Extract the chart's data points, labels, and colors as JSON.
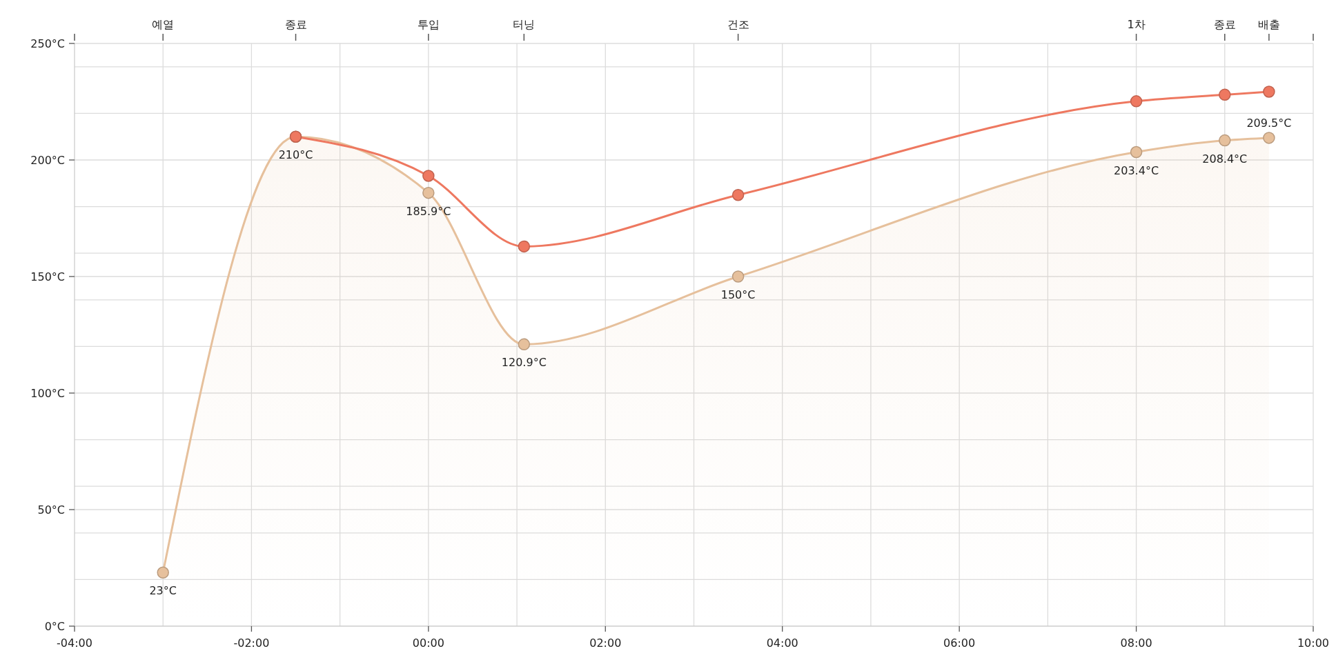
{
  "chart_data": {
    "type": "area",
    "xlim": [
      -4,
      10
    ],
    "xticks": [
      {
        "value": -4,
        "label": "-04:00"
      },
      {
        "value": -3,
        "label": null
      },
      {
        "value": -2,
        "label": "-02:00"
      },
      {
        "value": -1,
        "label": null
      },
      {
        "value": 0,
        "label": "00:00"
      },
      {
        "value": 1,
        "label": null
      },
      {
        "value": 2,
        "label": "02:00"
      },
      {
        "value": 3,
        "label": null
      },
      {
        "value": 4,
        "label": "04:00"
      },
      {
        "value": 5,
        "label": null
      },
      {
        "value": 6,
        "label": "06:00"
      },
      {
        "value": 7,
        "label": null
      },
      {
        "value": 8,
        "label": "08:00"
      },
      {
        "value": 9,
        "label": null
      },
      {
        "value": 10,
        "label": "10:00"
      }
    ],
    "ref_lines": [
      {
        "axis": "x",
        "value": -3,
        "label": "예열"
      },
      {
        "axis": "x",
        "value": -1.5,
        "label": "종료"
      },
      {
        "axis": "x",
        "value": 0,
        "label": "투입"
      },
      {
        "axis": "x",
        "value": 1.08,
        "label": "터닝"
      },
      {
        "axis": "x",
        "value": 3.5,
        "label": "건조"
      },
      {
        "axis": "x",
        "value": 8,
        "label": "1차"
      },
      {
        "axis": "x",
        "value": 9,
        "label": "종료"
      },
      {
        "axis": "x",
        "value": 9.5,
        "label": "배출"
      }
    ],
    "ylim": [
      0,
      250
    ],
    "yticks": [
      {
        "value": 0,
        "label": "0°C"
      },
      {
        "value": 20,
        "label": null
      },
      {
        "value": 40,
        "label": null
      },
      {
        "value": 50,
        "label": "50°C"
      },
      {
        "value": 60,
        "label": null
      },
      {
        "value": 80,
        "label": null
      },
      {
        "value": 100,
        "label": "100°C"
      },
      {
        "value": 120,
        "label": null
      },
      {
        "value": 140,
        "label": null
      },
      {
        "value": 150,
        "label": "150°C"
      },
      {
        "value": 160,
        "label": null
      },
      {
        "value": 180,
        "label": null
      },
      {
        "value": 200,
        "label": "200°C"
      },
      {
        "value": 220,
        "label": null
      },
      {
        "value": 240,
        "label": null
      },
      {
        "value": 250,
        "label": "250°C"
      }
    ],
    "grid": true,
    "marker": "circle",
    "series": [
      {
        "color": "#e6c09c",
        "x": [
          -3,
          -1.5,
          0,
          1.08,
          3.5,
          8,
          9,
          9.5
        ],
        "values": [
          23,
          210,
          185.9,
          120.9,
          150,
          203.4,
          208.4,
          209.5
        ],
        "value_labels": [
          "23°C",
          "210°C",
          "185.9°C",
          "120.9°C",
          "150°C",
          "203.4°C",
          "208.4°C",
          "209.5°C"
        ]
      },
      {
        "type": "line",
        "color": "#ee7860",
        "x": [
          -1.5,
          0,
          1.08,
          3.5,
          8,
          9,
          9.5
        ],
        "values": [
          210,
          193.2,
          162.9,
          185,
          225.2,
          228,
          229.3
        ]
      }
    ]
  }
}
